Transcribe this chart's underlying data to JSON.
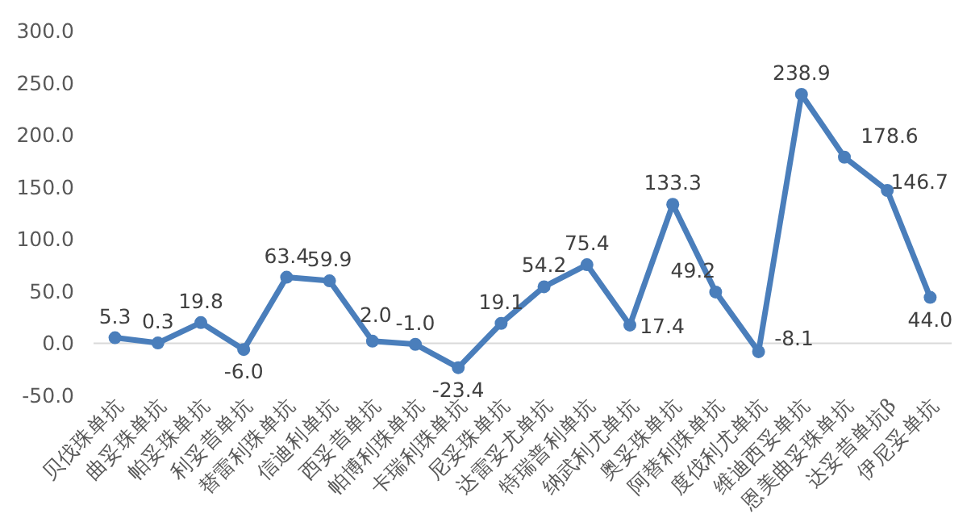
{
  "chart_data": {
    "type": "line",
    "categories": [
      "贝伐珠单抗",
      "曲妥珠单抗",
      "帕妥珠单抗",
      "利妥昔单抗",
      "替雷利珠单抗",
      "信迪利单抗",
      "西妥昔单抗",
      "帕博利珠单抗",
      "卡瑞利珠单抗",
      "尼妥珠单抗",
      "达雷妥尤单抗",
      "特瑞普利单抗",
      "纳武利尤单抗",
      "奥妥珠单抗",
      "阿替利珠单抗",
      "度伐利尤单抗",
      "维迪西妥单抗",
      "恩美曲妥珠单抗",
      "达妥昔单抗β",
      "伊尼妥单抗"
    ],
    "series": [
      {
        "color": "#4a7ebb",
        "values": [
          5.3,
          0.3,
          19.8,
          -6.0,
          63.4,
          59.9,
          2.0,
          -1.0,
          -23.4,
          19.1,
          54.2,
          75.4,
          17.4,
          133.3,
          49.2,
          -8.1,
          238.9,
          178.6,
          146.7,
          44.0
        ]
      }
    ],
    "value_labels": [
      "5.3",
      "0.3",
      "19.8",
      "-6.0",
      "63.4",
      "59.9",
      "2.0",
      "-1.0",
      "-23.4",
      "19.1",
      "54.2",
      "75.4",
      "17.4",
      "133.3",
      "49.2",
      "-8.1",
      "238.9",
      "178.6",
      "146.7",
      "44.0"
    ],
    "ylim": [
      -50,
      300
    ],
    "yticks": [
      {
        "value": -50,
        "label": "-50.0"
      },
      {
        "value": 0,
        "label": "0.0"
      },
      {
        "value": 50,
        "label": "50.0"
      },
      {
        "value": 100,
        "label": "100.0"
      },
      {
        "value": 150,
        "label": "150.0"
      },
      {
        "value": 200,
        "label": "200.0"
      },
      {
        "value": 250,
        "label": "250.0"
      },
      {
        "value": 300,
        "label": "300.0"
      }
    ],
    "marker": "circle",
    "line_style": "solid",
    "grid": false
  }
}
